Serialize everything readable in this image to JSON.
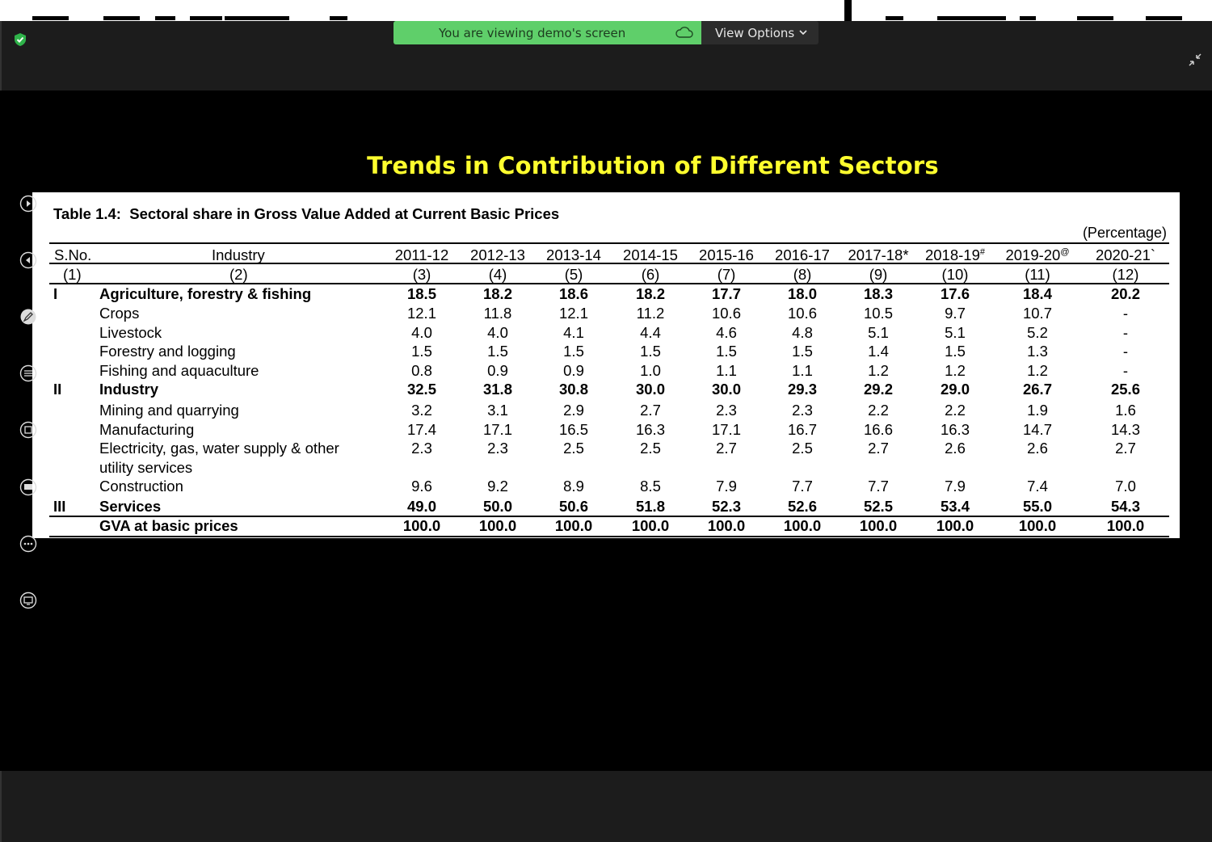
{
  "banner": {
    "viewing_text": "You are viewing demo's screen",
    "view_options_label": "View Options"
  },
  "slide": {
    "title": "Trends in Contribution of Different Sectors"
  },
  "table": {
    "caption": "Table 1.4:  Sectoral share in Gross Value Added at Current Basic Prices",
    "unit": "(Percentage)",
    "header": {
      "sno": "S.No.",
      "industry": "Industry",
      "years": [
        "2011-12",
        "2012-13",
        "2013-14",
        "2014-15",
        "2015-16",
        "2016-17",
        "2017-18*",
        "2018-19#",
        "2019-20@",
        "2020-21`"
      ]
    },
    "col_numbers": [
      "(1)",
      "(2)",
      "(3)",
      "(4)",
      "(5)",
      "(6)",
      "(7)",
      "(8)",
      "(9)",
      "(10)",
      "(11)",
      "(12)"
    ],
    "rows": [
      {
        "sno": "I",
        "label": "Agriculture, forestry & fishing",
        "bold": true,
        "values": [
          "18.5",
          "18.2",
          "18.6",
          "18.2",
          "17.7",
          "18.0",
          "18.3",
          "17.6",
          "18.4",
          "20.2"
        ]
      },
      {
        "sno": "",
        "label": "Crops",
        "bold": false,
        "values": [
          "12.1",
          "11.8",
          "12.1",
          "11.2",
          "10.6",
          "10.6",
          "10.5",
          "9.7",
          "10.7",
          "-"
        ]
      },
      {
        "sno": "",
        "label": "Livestock",
        "bold": false,
        "values": [
          "4.0",
          "4.0",
          "4.1",
          "4.4",
          "4.6",
          "4.8",
          "5.1",
          "5.1",
          "5.2",
          "-"
        ]
      },
      {
        "sno": "",
        "label": "Forestry and logging",
        "bold": false,
        "values": [
          "1.5",
          "1.5",
          "1.5",
          "1.5",
          "1.5",
          "1.5",
          "1.4",
          "1.5",
          "1.3",
          "-"
        ]
      },
      {
        "sno": "",
        "label": "Fishing and aquaculture",
        "bold": false,
        "values": [
          "0.8",
          "0.9",
          "0.9",
          "1.0",
          "1.1",
          "1.1",
          "1.2",
          "1.2",
          "1.2",
          "-"
        ]
      },
      {
        "sno": "II",
        "label": "Industry",
        "bold": true,
        "values": [
          "32.5",
          "31.8",
          "30.8",
          "30.0",
          "30.0",
          "29.3",
          "29.2",
          "29.0",
          "26.7",
          "25.6"
        ]
      },
      {
        "sno": "",
        "label": "Mining and quarrying",
        "bold": false,
        "values": [
          "3.2",
          "3.1",
          "2.9",
          "2.7",
          "2.3",
          "2.3",
          "2.2",
          "2.2",
          "1.9",
          "1.6"
        ]
      },
      {
        "sno": "",
        "label": "Manufacturing",
        "bold": false,
        "values": [
          "17.4",
          "17.1",
          "16.5",
          "16.3",
          "17.1",
          "16.7",
          "16.6",
          "16.3",
          "14.7",
          "14.3"
        ]
      },
      {
        "sno": "",
        "label": "Electricity, gas, water supply & other",
        "label2": "utility services",
        "bold": false,
        "values": [
          "2.3",
          "2.3",
          "2.5",
          "2.5",
          "2.7",
          "2.5",
          "2.7",
          "2.6",
          "2.6",
          "2.7"
        ]
      },
      {
        "sno": "",
        "label": "Construction",
        "bold": false,
        "values": [
          "9.6",
          "9.2",
          "8.9",
          "8.5",
          "7.9",
          "7.7",
          "7.7",
          "7.9",
          "7.4",
          "7.0"
        ]
      },
      {
        "sno": "III",
        "label": "Services",
        "bold": true,
        "values": [
          "49.0",
          "50.0",
          "50.6",
          "51.8",
          "52.3",
          "52.6",
          "52.5",
          "53.4",
          "55.0",
          "54.3"
        ]
      },
      {
        "sno": "",
        "label": "GVA at basic prices",
        "bold": true,
        "values": [
          "100.0",
          "100.0",
          "100.0",
          "100.0",
          "100.0",
          "100.0",
          "100.0",
          "100.0",
          "100.0",
          "100.0"
        ]
      }
    ]
  },
  "toolbar": {
    "tools": [
      "play-forward-icon",
      "play-back-icon",
      "pen-annotate-icon",
      "text-lines-icon",
      "stop-square-icon",
      "whiteboard-icon",
      "more-icon",
      "screen-share-icon"
    ]
  },
  "colors": {
    "banner_green": "#5fcf6a",
    "title_yellow": "#ffff2e",
    "background": "#000000"
  }
}
